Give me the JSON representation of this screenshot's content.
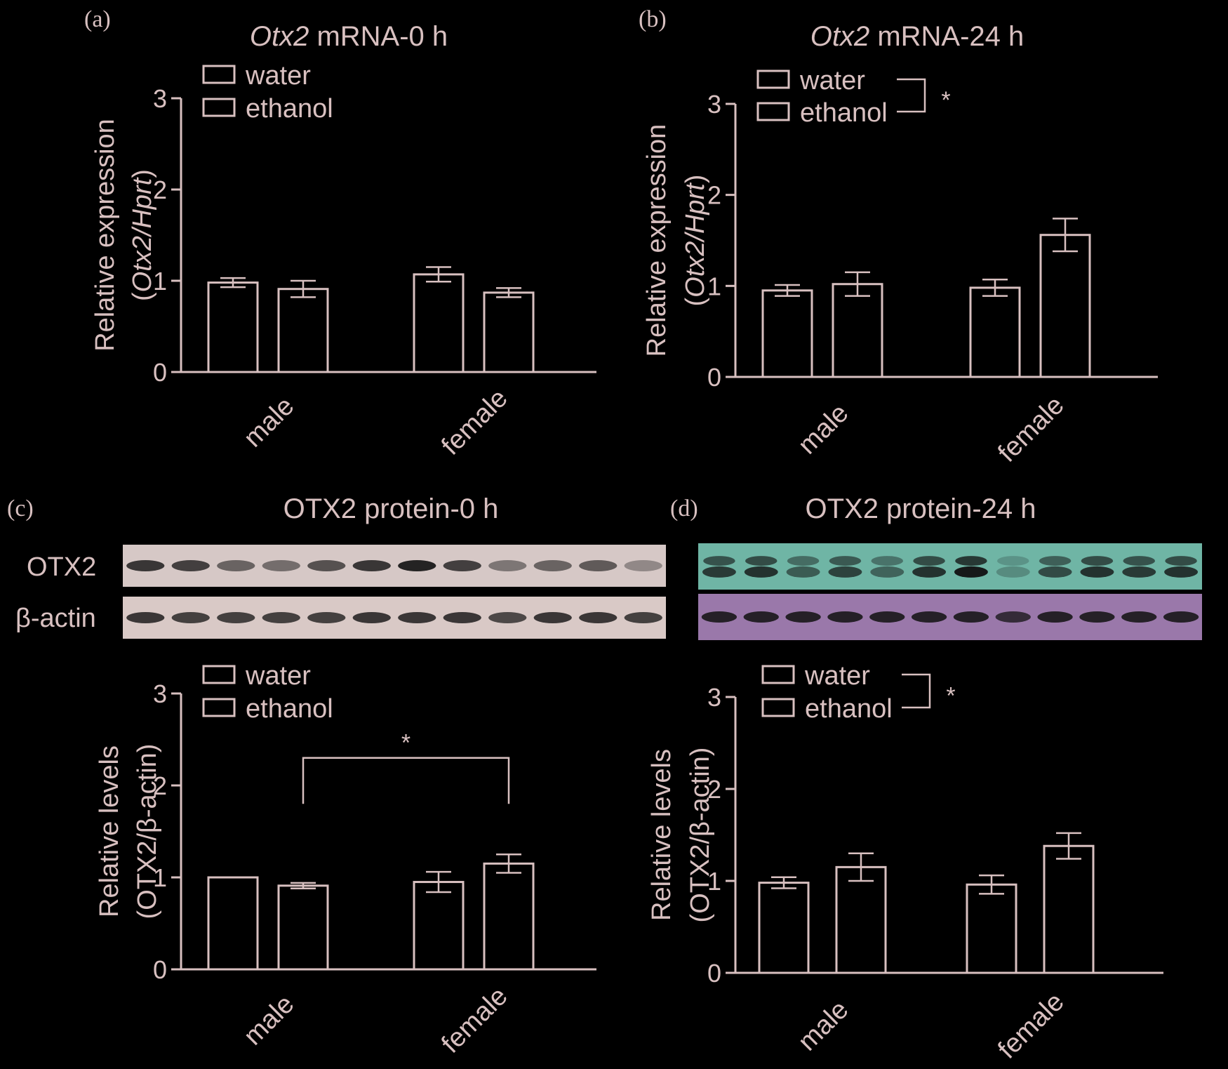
{
  "colors": {
    "background": "#000000",
    "ink": "#d8c0c0",
    "blot_c_otx2": "#d6c8c6",
    "blot_c_actin": "#d9c9c6",
    "blot_d_otx2": "#6fb5a5",
    "blot_d_actin": "#9a78aa",
    "band": "#111111"
  },
  "chart_data": [
    {
      "panel": "(a)",
      "type": "bar",
      "title_italic": "Otx2",
      "title_rest": " mRNA-0 h",
      "ylabel_line1": "Relative expression",
      "ylabel_line2_pre": "(",
      "ylabel_line2_italic": "Otx2/Hprt",
      "ylabel_line2_post": ")",
      "ylim": [
        0,
        3
      ],
      "yticks": [
        "0",
        "1",
        "2",
        "3"
      ],
      "categories": [
        "male",
        "female"
      ],
      "legend": [
        "water",
        "ethanol"
      ],
      "legend_sig": "",
      "series": [
        {
          "name": "water",
          "values": [
            0.98,
            1.07
          ],
          "errors": [
            0.05,
            0.08
          ]
        },
        {
          "name": "ethanol",
          "values": [
            0.91,
            0.87
          ],
          "errors": [
            0.09,
            0.05
          ]
        }
      ]
    },
    {
      "panel": "(b)",
      "type": "bar",
      "title_italic": "Otx2",
      "title_rest": " mRNA-24 h",
      "ylabel_line1": "Relative expression",
      "ylabel_line2_pre": "(",
      "ylabel_line2_italic": "Otx2/Hprt",
      "ylabel_line2_post": ")",
      "ylim": [
        0,
        3
      ],
      "yticks": [
        "0",
        "1",
        "2",
        "3"
      ],
      "categories": [
        "male",
        "female"
      ],
      "legend": [
        "water",
        "ethanol"
      ],
      "legend_sig": "*",
      "series": [
        {
          "name": "water",
          "values": [
            0.95,
            0.98
          ],
          "errors": [
            0.06,
            0.09
          ]
        },
        {
          "name": "ethanol",
          "values": [
            1.02,
            1.56
          ],
          "errors": [
            0.13,
            0.18
          ]
        }
      ]
    },
    {
      "panel": "(c)",
      "type": "bar",
      "title_italic": "",
      "title_rest": "OTX2 protein-0 h",
      "ylabel_line1": "Relative levels",
      "ylabel_line2_pre": "(OTX2/β-actin)",
      "ylabel_line2_italic": "",
      "ylabel_line2_post": "",
      "ylim": [
        0,
        3
      ],
      "yticks": [
        "0",
        "1",
        "2",
        "3"
      ],
      "categories": [
        "male",
        "female"
      ],
      "legend": [
        "water",
        "ethanol"
      ],
      "legend_sig": "",
      "bracket_sig": "*",
      "series": [
        {
          "name": "water",
          "values": [
            1.0,
            0.95
          ],
          "errors": [
            0.0,
            0.11
          ]
        },
        {
          "name": "ethanol",
          "values": [
            0.91,
            1.15
          ],
          "errors": [
            0.03,
            0.1
          ]
        }
      ]
    },
    {
      "panel": "(d)",
      "type": "bar",
      "title_italic": "",
      "title_rest": "OTX2 protein-24 h",
      "ylabel_line1": "Relative levels",
      "ylabel_line2_pre": "(OTX2/β-actin)",
      "ylabel_line2_italic": "",
      "ylabel_line2_post": "",
      "ylim": [
        0,
        3
      ],
      "yticks": [
        "0",
        "1",
        "2",
        "3"
      ],
      "categories": [
        "male",
        "female"
      ],
      "legend": [
        "water",
        "ethanol"
      ],
      "legend_sig": "*",
      "series": [
        {
          "name": "water",
          "values": [
            0.98,
            0.96
          ],
          "errors": [
            0.06,
            0.1
          ]
        },
        {
          "name": "ethanol",
          "values": [
            1.15,
            1.38
          ],
          "errors": [
            0.15,
            0.14
          ]
        }
      ]
    }
  ],
  "blots": {
    "labels": [
      "OTX2",
      "β-actin"
    ],
    "lanes": 12,
    "c_otx2_intensity": [
      0.8,
      0.75,
      0.55,
      0.5,
      0.65,
      0.8,
      0.9,
      0.75,
      0.45,
      0.55,
      0.6,
      0.35
    ],
    "c_actin_intensity": [
      0.8,
      0.75,
      0.75,
      0.75,
      0.75,
      0.8,
      0.8,
      0.8,
      0.7,
      0.8,
      0.8,
      0.75
    ],
    "d_otx2_intensity": [
      0.75,
      0.8,
      0.55,
      0.7,
      0.5,
      0.8,
      0.95,
      0.25,
      0.65,
      0.8,
      0.75,
      0.8
    ],
    "d_actin_intensity": [
      0.85,
      0.85,
      0.85,
      0.85,
      0.85,
      0.85,
      0.85,
      0.75,
      0.85,
      0.85,
      0.85,
      0.85
    ]
  }
}
